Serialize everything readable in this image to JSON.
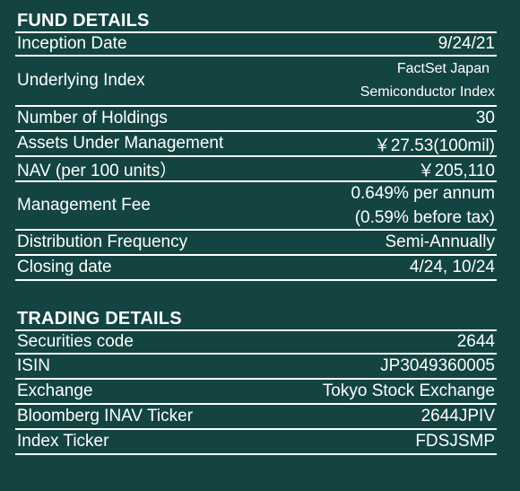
{
  "fund_details": {
    "title": "FUND DETAILS",
    "rows": {
      "inception_date": {
        "label": "Inception Date",
        "value": "9/24/21"
      },
      "underlying_index": {
        "label": "Underlying Index",
        "value_line1": "FactSet Japan",
        "value_line2": "Semiconductor Index"
      },
      "number_of_holdings": {
        "label": "Number of Holdings",
        "value": "30"
      },
      "assets_under_management": {
        "label": "Assets Under Management",
        "value": "￥27.53(100mil)"
      },
      "nav": {
        "label": "NAV (per 100 units）",
        "value": "￥205,110"
      },
      "management_fee": {
        "label": "Management Fee",
        "value_line1": "0.649% per annum",
        "value_line2": "(0.59% before tax)"
      },
      "distribution_frequency": {
        "label": "Distribution Frequency",
        "value": "Semi-Annually"
      },
      "closing_date": {
        "label": "Closing date",
        "value": "4/24, 10/24"
      }
    }
  },
  "trading_details": {
    "title": "TRADING DETAILS",
    "rows": {
      "securities_code": {
        "label": "Securities code",
        "value": "2644"
      },
      "isin": {
        "label": "ISIN",
        "value": "JP3049360005"
      },
      "exchange": {
        "label": "Exchange",
        "value": "Tokyo Stock Exchange"
      },
      "bloomberg_inav_ticker": {
        "label": "Bloomberg INAV Ticker",
        "value": "2644JPIV"
      },
      "index_ticker": {
        "label": "Index Ticker",
        "value": "FDSJSMP"
      }
    }
  },
  "colors": {
    "background": "#134442",
    "text": "#ffffff",
    "rule": "#ffffff"
  }
}
